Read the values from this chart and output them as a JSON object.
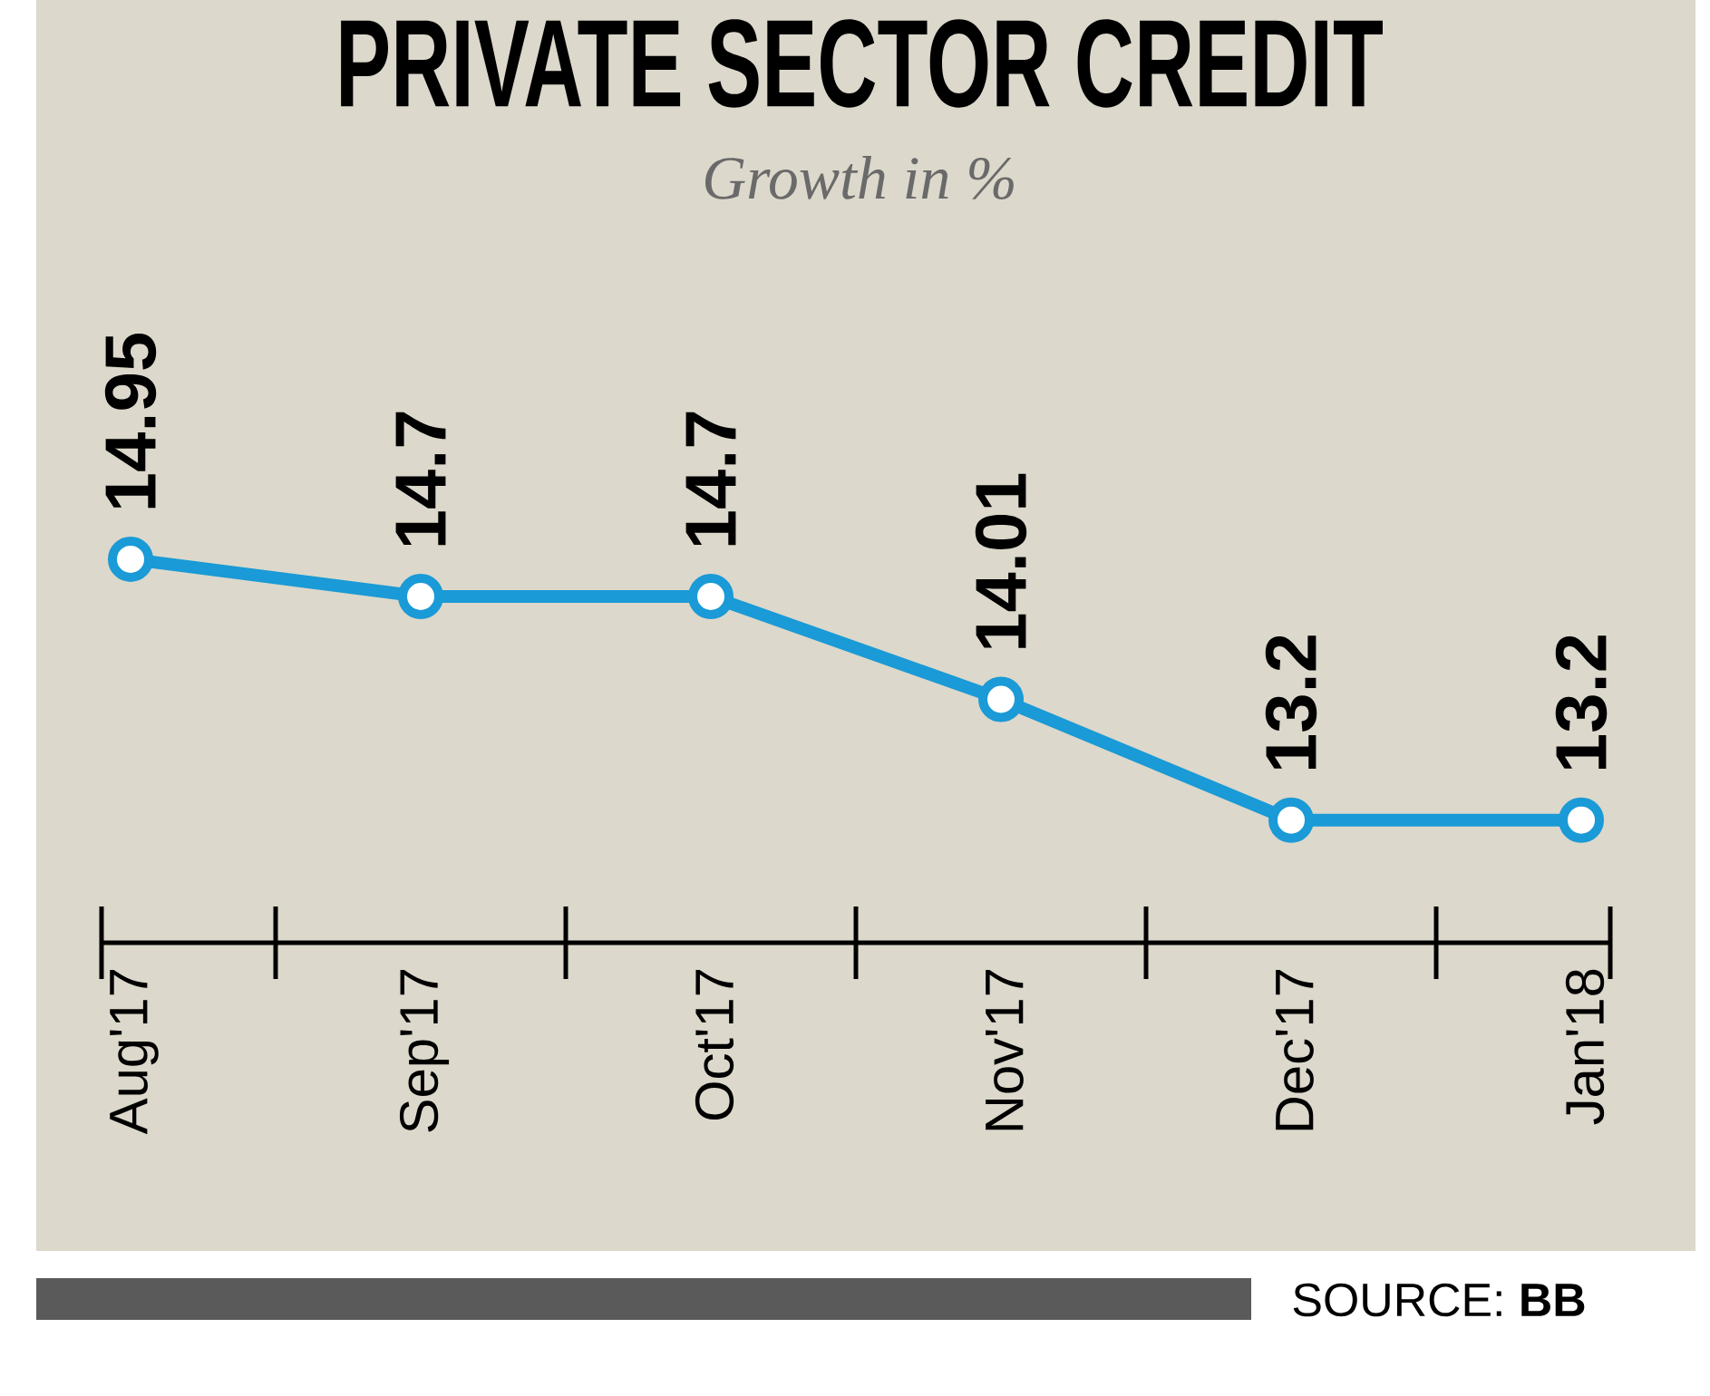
{
  "chart_data": {
    "type": "line",
    "title": "PRIVATE SECTOR CREDIT",
    "subtitle": "Growth in %",
    "categories": [
      "Aug'17",
      "Sep'17",
      "Oct'17",
      "Nov'17",
      "Dec'17",
      "Jan'18"
    ],
    "values": [
      14.95,
      14.7,
      14.7,
      14.01,
      13.2,
      13.2
    ],
    "color": "#1a9ad6",
    "marker": "circle",
    "data_labels": true,
    "tick_labels": "x",
    "annotations": [
      "SOURCE: **BB**"
    ]
  }
}
